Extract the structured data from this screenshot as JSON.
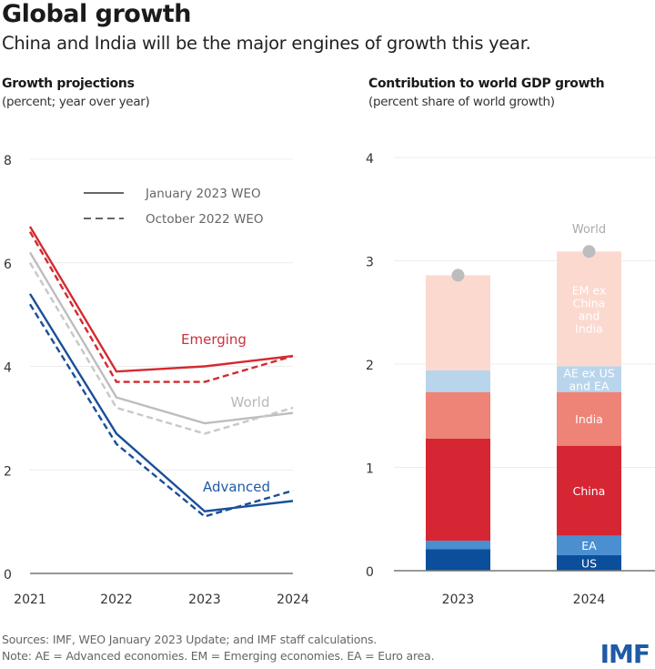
{
  "title": "Global growth",
  "subtitle": "China and India will be the major engines of growth this year.",
  "footer": {
    "sources": "Sources: IMF, WEO January 2023 Update; and IMF staff calculations.",
    "note": "Note: AE = Advanced economies.  EM = Emerging economies. EA = Euro area.",
    "logo": "IMF"
  },
  "chart_data": [
    {
      "type": "line",
      "title": "Growth projections",
      "subtitle": "(percent; year over year)",
      "x": [
        "2021",
        "2022",
        "2023",
        "2024"
      ],
      "ylim": [
        0,
        8
      ],
      "yticks": [
        0,
        2,
        4,
        6,
        8
      ],
      "grid": true,
      "legend": {
        "position": "top-right",
        "entries": [
          {
            "label": "January 2023 WEO",
            "style": "solid"
          },
          {
            "label": "October 2022 WEO",
            "style": "dashed"
          }
        ]
      },
      "series": [
        {
          "name": "Emerging",
          "edition": "January 2023 WEO",
          "color": "#d42a2f",
          "values": [
            6.7,
            3.9,
            4.0,
            4.2
          ]
        },
        {
          "name": "Emerging",
          "edition": "October 2022 WEO",
          "color": "#d42a2f",
          "values": [
            6.6,
            3.7,
            3.7,
            4.2
          ]
        },
        {
          "name": "World",
          "edition": "January 2023 WEO",
          "color": "#bdbdbd",
          "values": [
            6.2,
            3.4,
            2.9,
            3.1
          ]
        },
        {
          "name": "World",
          "edition": "October 2022 WEO",
          "color": "#c8c8c8",
          "values": [
            6.0,
            3.2,
            2.7,
            3.2
          ]
        },
        {
          "name": "Advanced",
          "edition": "January 2023 WEO",
          "color": "#1a4f9a",
          "values": [
            5.4,
            2.7,
            1.2,
            1.4
          ]
        },
        {
          "name": "Advanced",
          "edition": "October 2022 WEO",
          "color": "#1a4f9a",
          "values": [
            5.2,
            2.5,
            1.1,
            1.6
          ]
        }
      ]
    },
    {
      "type": "bar",
      "stacked": true,
      "title": "Contribution to world GDP growth",
      "subtitle": "(percent share of world growth)",
      "categories": [
        "2023",
        "2024"
      ],
      "ylim": [
        0,
        4
      ],
      "yticks": [
        0,
        1,
        2,
        3,
        4
      ],
      "grid": true,
      "series": [
        {
          "name": "US",
          "label_lines": [
            "US"
          ],
          "color": "#0b4f9c",
          "values": [
            0.21,
            0.15
          ]
        },
        {
          "name": "EA",
          "label_lines": [
            "EA"
          ],
          "color": "#4a8fd0",
          "values": [
            0.08,
            0.19
          ]
        },
        {
          "name": "China",
          "label_lines": [
            "China"
          ],
          "color": "#d62633",
          "values": [
            0.99,
            0.87
          ]
        },
        {
          "name": "India",
          "label_lines": [
            "India"
          ],
          "color": "#ee8378",
          "values": [
            0.45,
            0.52
          ]
        },
        {
          "name": "AE ex US and EA",
          "label_lines": [
            "AE ex US",
            "and EA"
          ],
          "color": "#b9d5ec",
          "values": [
            0.21,
            0.25
          ]
        },
        {
          "name": "EM ex China and India",
          "label_lines": [
            "EM ex",
            "China",
            "and",
            "India"
          ],
          "color": "#fcd9cf",
          "values": [
            0.92,
            1.11
          ]
        }
      ],
      "world": {
        "name": "World",
        "color": "#bdbdc0",
        "values": [
          2.86,
          3.09
        ]
      }
    }
  ]
}
